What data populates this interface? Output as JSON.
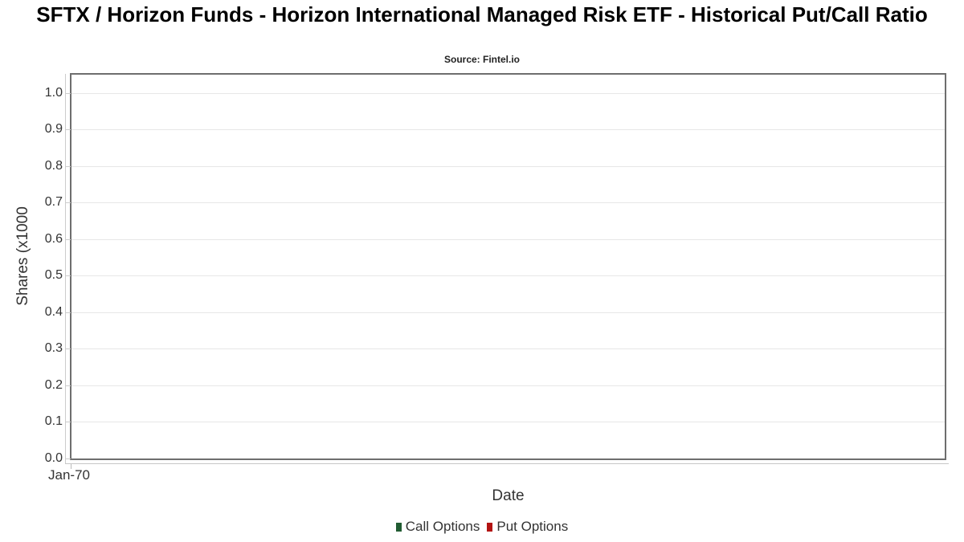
{
  "header": {
    "title": "SFTX / Horizon Funds - Horizon International Managed Risk ETF - Historical Put/Call Ratio",
    "source": "Source: Fintel.io"
  },
  "chart_data": {
    "type": "line",
    "title": "SFTX / Horizon Funds - Horizon International Managed Risk ETF - Historical Put/Call Ratio",
    "subtitle": "Source: Fintel.io",
    "xlabel": "Date",
    "ylabel": "Shares (x1000",
    "ylim": [
      0,
      1.05
    ],
    "yticks": [
      "0.0",
      "0.1",
      "0.2",
      "0.3",
      "0.4",
      "0.5",
      "0.6",
      "0.7",
      "0.8",
      "0.9",
      "1.0"
    ],
    "xticks": [
      "Jan-70"
    ],
    "grid": "horizontal",
    "legend_position": "bottom",
    "series": [
      {
        "name": "Call Options",
        "color": "#215c32",
        "values": []
      },
      {
        "name": "Put Options",
        "color": "#b31312",
        "values": []
      }
    ]
  },
  "colors": {
    "background": "#ffffff",
    "plot_border": "#6e6e6e",
    "gridline": "#e7e7e7",
    "axis_line": "#cccccc",
    "tick_text": "#333333",
    "title_text": "#000000"
  }
}
